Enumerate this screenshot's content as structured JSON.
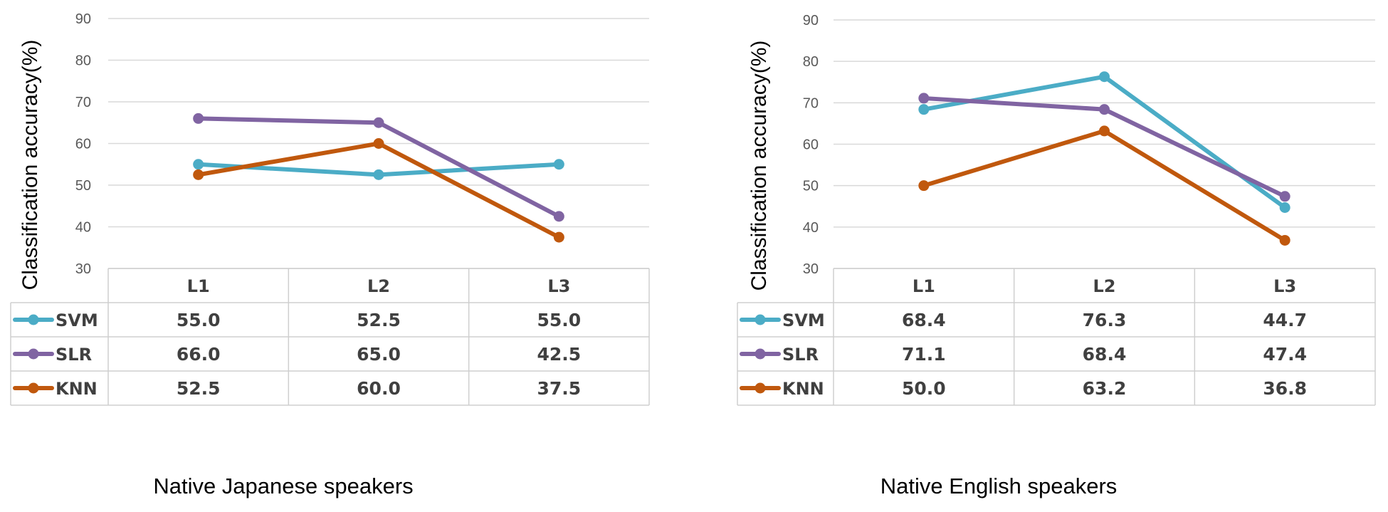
{
  "chart_data": [
    {
      "type": "line",
      "caption": "Native Japanese speakers",
      "ylabel": "Classification accuracy(%)",
      "ylim": [
        30,
        90
      ],
      "yticks": [
        30,
        40,
        50,
        60,
        70,
        80,
        90
      ],
      "categories": [
        "L1",
        "L2",
        "L3"
      ],
      "series": [
        {
          "name": "SVM",
          "color": "#4bacc6",
          "values": [
            55.0,
            52.5,
            55.0
          ],
          "labels": [
            "55.0",
            "52.5",
            "55.0"
          ]
        },
        {
          "name": "SLR",
          "color": "#8064a2",
          "values": [
            66.0,
            65.0,
            42.5
          ],
          "labels": [
            "66.0",
            "65.0",
            "42.5"
          ]
        },
        {
          "name": "KNN",
          "color": "#c0580d",
          "values": [
            52.5,
            60.0,
            37.5
          ],
          "labels": [
            "52.5",
            "60.0",
            "37.5"
          ]
        }
      ]
    },
    {
      "type": "line",
      "caption": "Native English speakers",
      "ylabel": "Classification accuracy(%)",
      "ylim": [
        30,
        90
      ],
      "yticks": [
        30,
        40,
        50,
        60,
        70,
        80,
        90
      ],
      "categories": [
        "L1",
        "L2",
        "L3"
      ],
      "series": [
        {
          "name": "SVM",
          "color": "#4bacc6",
          "values": [
            68.4,
            76.3,
            44.7
          ],
          "labels": [
            "68.4",
            "76.3",
            "44.7"
          ]
        },
        {
          "name": "SLR",
          "color": "#8064a2",
          "values": [
            71.1,
            68.4,
            47.4
          ],
          "labels": [
            "71.1",
            "68.4",
            "47.4"
          ]
        },
        {
          "name": "KNN",
          "color": "#c0580d",
          "values": [
            50.0,
            63.2,
            36.8
          ],
          "labels": [
            "50.0",
            "63.2",
            "36.8"
          ]
        }
      ]
    }
  ]
}
